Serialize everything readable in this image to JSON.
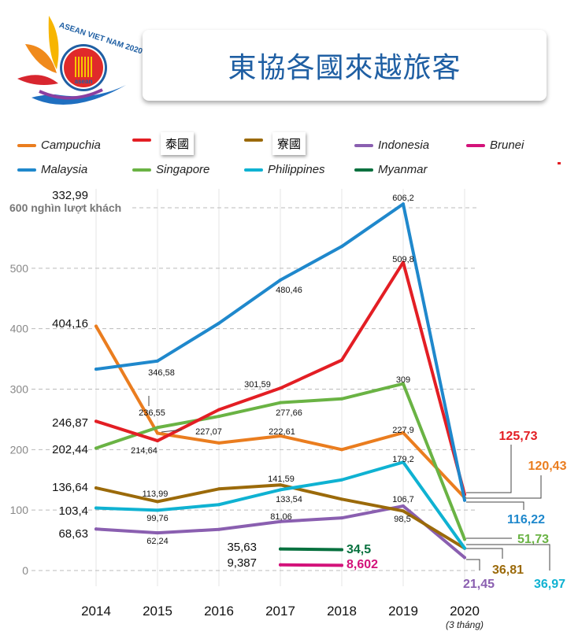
{
  "logo": {
    "text": "ASEAN VIET NAM 2020",
    "emblem_text": "asean"
  },
  "title": "東協各國來越旅客",
  "chart_data": {
    "type": "line",
    "title": "東協各國來越旅客",
    "ylabel": "600 nghìn lượt khách",
    "categories": [
      "2014",
      "2015",
      "2016",
      "2017",
      "2018",
      "2019",
      "2020"
    ],
    "category_note": "(3 tháng)",
    "ylim": [
      0,
      600
    ],
    "yticks": [
      "0",
      "100",
      "200",
      "300",
      "400",
      "500",
      "600 nghìn lượt khách"
    ],
    "grid": true,
    "legend_position": "top",
    "series": [
      {
        "id": "malaysia",
        "name": "Malaysia",
        "color": "#1f88cc",
        "values": [
          332.99,
          346.58,
          409,
          480.46,
          536,
          606.2,
          116.22
        ],
        "labels": [
          "332,99",
          "346,58",
          null,
          "480,46",
          null,
          "606,2",
          "116,22"
        ]
      },
      {
        "id": "thailand",
        "name": "泰國",
        "color": "#e31e24",
        "values": [
          246.87,
          214.64,
          266,
          301.59,
          348,
          509.8,
          125.73
        ],
        "labels": [
          "246,87",
          "214,64",
          null,
          "301,59",
          null,
          "509,8",
          "125,73"
        ]
      },
      {
        "id": "singapore",
        "name": "Singapore",
        "color": "#6ab344",
        "values": [
          202.44,
          236.55,
          255,
          277.66,
          284,
          309,
          51.73
        ],
        "labels": [
          "202,44",
          "236,55",
          null,
          "277,66",
          null,
          "309",
          "51,73"
        ]
      },
      {
        "id": "campuchia",
        "name": "Campuchia",
        "color": "#ea7d1f",
        "values": [
          404.16,
          227.07,
          211,
          222.61,
          200,
          227.9,
          120.43
        ],
        "labels": [
          "404,16",
          "227,07",
          null,
          "222,61",
          null,
          "227,9",
          "120,43"
        ]
      },
      {
        "id": "laos",
        "name": "寮國",
        "color": "#9b6a0a",
        "values": [
          136.64,
          113.99,
          135,
          141.59,
          118,
          98.5,
          36.81
        ],
        "labels": [
          "136,64",
          "113,99",
          null,
          "141,59",
          null,
          "98,5",
          "36,81"
        ]
      },
      {
        "id": "philippines",
        "name": "Philippines",
        "color": "#0fb2d2",
        "values": [
          103.4,
          99.76,
          109,
          133.54,
          150,
          179.2,
          36.97
        ],
        "labels": [
          "103,4",
          "99,76",
          null,
          "133,54",
          null,
          "179,2",
          "36,97"
        ]
      },
      {
        "id": "indonesia",
        "name": "Indonesia",
        "color": "#8a5fb0",
        "values": [
          68.63,
          62.24,
          68,
          81.06,
          87,
          106.7,
          21.45
        ],
        "labels": [
          "68,63",
          "62,24",
          null,
          "81,06",
          null,
          "106,7",
          "21,45"
        ]
      },
      {
        "id": "myanmar",
        "name": "Myanmar",
        "color": "#08713f",
        "values": [
          null,
          null,
          null,
          35.63,
          34.5,
          null,
          null
        ],
        "labels": [
          null,
          null,
          null,
          "35,63",
          "34,5",
          null,
          null
        ]
      },
      {
        "id": "brunei",
        "name": "Brunei",
        "color": "#d3127a",
        "values": [
          null,
          null,
          null,
          9.387,
          8.602,
          null,
          null
        ],
        "labels": [
          null,
          null,
          null,
          "9,387",
          "8,602",
          null,
          null
        ]
      }
    ]
  }
}
